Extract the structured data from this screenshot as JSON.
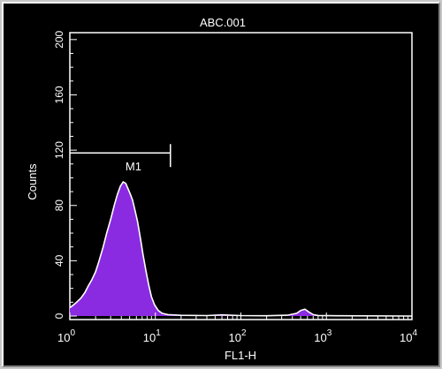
{
  "chart_data": {
    "type": "histogram",
    "title": "ABC.001",
    "xlabel": "FL1-H",
    "ylabel": "Counts",
    "x_scale": "log",
    "xlim": [
      1,
      10000
    ],
    "ylim": [
      0,
      205
    ],
    "y_ticks": [
      0,
      40,
      80,
      120,
      160,
      200
    ],
    "x_tick_labels": [
      {
        "base": "10",
        "exp": "0"
      },
      {
        "base": "10",
        "exp": "1"
      },
      {
        "base": "10",
        "exp": "2"
      },
      {
        "base": "10",
        "exp": "3"
      },
      {
        "base": "10",
        "exp": "4"
      }
    ],
    "fill_color": "#8a2be2",
    "outline_color": "#ffffff",
    "background": "#000000",
    "points": [
      [
        1.0,
        6
      ],
      [
        1.1,
        8
      ],
      [
        1.2,
        10
      ],
      [
        1.35,
        13
      ],
      [
        1.5,
        17
      ],
      [
        1.65,
        22
      ],
      [
        1.8,
        26
      ],
      [
        2.0,
        32
      ],
      [
        2.2,
        40
      ],
      [
        2.45,
        50
      ],
      [
        2.7,
        60
      ],
      [
        3.0,
        70
      ],
      [
        3.3,
        80
      ],
      [
        3.6,
        88
      ],
      [
        3.9,
        94
      ],
      [
        4.2,
        97
      ],
      [
        4.5,
        96
      ],
      [
        4.8,
        92
      ],
      [
        5.1,
        88
      ],
      [
        5.4,
        84
      ],
      [
        5.8,
        76
      ],
      [
        6.2,
        68
      ],
      [
        6.7,
        56
      ],
      [
        7.2,
        44
      ],
      [
        7.8,
        32
      ],
      [
        8.4,
        22
      ],
      [
        9.0,
        14
      ],
      [
        9.8,
        8
      ],
      [
        10.8,
        4
      ],
      [
        12.0,
        2
      ],
      [
        14.0,
        1
      ],
      [
        20.0,
        0.5
      ],
      [
        40.0,
        0.3
      ],
      [
        60.0,
        0.8
      ],
      [
        100.0,
        0.3
      ],
      [
        200.0,
        0.2
      ],
      [
        350.0,
        0.6
      ],
      [
        450.0,
        2
      ],
      [
        500.0,
        4
      ],
      [
        560.0,
        5
      ],
      [
        620.0,
        3
      ],
      [
        700.0,
        1
      ],
      [
        800.0,
        0.4
      ],
      [
        1500.0,
        0.2
      ],
      [
        10000.0,
        0
      ]
    ],
    "marker": {
      "label": "M1",
      "x_start": 1,
      "x_end": 15,
      "y": 118
    }
  }
}
